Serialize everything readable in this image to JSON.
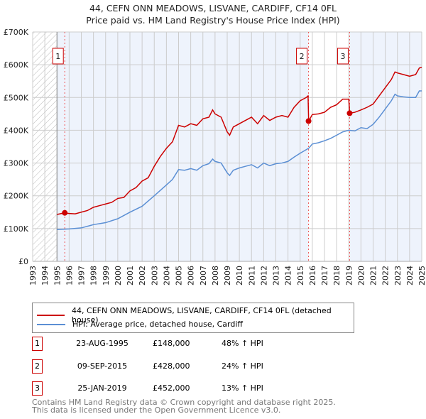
{
  "chart_data": {
    "type": "line",
    "title": "44, CEFN ONN MEADOWS, LISVANE, CARDIFF, CF14 0FL",
    "subtitle": "Price paid vs. HM Land Registry's House Price Index (HPI)",
    "xlim": [
      1993,
      2025
    ],
    "ylim": [
      0,
      700000
    ],
    "y_ticks": [
      {
        "v": 0,
        "label": "£0"
      },
      {
        "v": 100000,
        "label": "£100K"
      },
      {
        "v": 200000,
        "label": "£200K"
      },
      {
        "v": 300000,
        "label": "£300K"
      },
      {
        "v": 400000,
        "label": "£400K"
      },
      {
        "v": 500000,
        "label": "£500K"
      },
      {
        "v": 600000,
        "label": "£600K"
      },
      {
        "v": 700000,
        "label": "£700K"
      }
    ],
    "x_ticks": [
      "1993",
      "1994",
      "1995",
      "1996",
      "1997",
      "1998",
      "1999",
      "2000",
      "2001",
      "2002",
      "2003",
      "2004",
      "2005",
      "2006",
      "2007",
      "2008",
      "2009",
      "2010",
      "2011",
      "2012",
      "2013",
      "2014",
      "2015",
      "2016",
      "2017",
      "2018",
      "2019",
      "2020",
      "2021",
      "2022",
      "2023",
      "2024",
      "2025"
    ],
    "grid": true,
    "series": [
      {
        "name": "44, CEFN ONN MEADOWS, LISVANE, CARDIFF, CF14 0FL (detached house)",
        "color": "#cc0000",
        "x": [
          1995,
          1995.6,
          1996,
          1996.5,
          1997,
          1997.5,
          1998,
          1998.5,
          1999,
          1999.5,
          2000,
          2000.5,
          2001,
          2001.5,
          2002,
          2002.5,
          2003,
          2003.5,
          2004,
          2004.5,
          2004.8,
          2005,
          2005.5,
          2006,
          2006.5,
          2007,
          2007.5,
          2007.8,
          2008,
          2008.5,
          2009,
          2009.2,
          2009.5,
          2010,
          2010.5,
          2011,
          2011.5,
          2012,
          2012.5,
          2013,
          2013.5,
          2014,
          2014.5,
          2015,
          2015.5,
          2015.65,
          2015.7,
          2016,
          2016.5,
          2017,
          2017.5,
          2018,
          2018.5,
          2019,
          2019.07,
          2019.5,
          2020,
          2020.5,
          2021,
          2021.5,
          2022,
          2022.5,
          2022.8,
          2023,
          2023.5,
          2024,
          2024.5,
          2024.8,
          2025
        ],
        "y": [
          143000,
          148000,
          146000,
          145000,
          150000,
          155000,
          165000,
          170000,
          175000,
          180000,
          192000,
          195000,
          215000,
          225000,
          245000,
          255000,
          290000,
          320000,
          345000,
          365000,
          395000,
          415000,
          410000,
          420000,
          415000,
          435000,
          440000,
          462000,
          450000,
          440000,
          395000,
          385000,
          410000,
          420000,
          430000,
          440000,
          420000,
          445000,
          430000,
          440000,
          445000,
          440000,
          470000,
          490000,
          500000,
          505000,
          428000,
          448000,
          450000,
          455000,
          470000,
          478000,
          495000,
          495000,
          452000,
          455000,
          462000,
          470000,
          480000,
          505000,
          530000,
          555000,
          578000,
          575000,
          570000,
          565000,
          570000,
          590000,
          592000
        ]
      },
      {
        "name": "HPI: Average price, detached house, Cardiff",
        "color": "#5b8fd4",
        "x": [
          1995,
          1996,
          1997,
          1998,
          1999,
          2000,
          2001,
          2002,
          2003,
          2004,
          2004.5,
          2005,
          2005.5,
          2006,
          2006.5,
          2007,
          2007.5,
          2007.8,
          2008,
          2008.5,
          2009,
          2009.2,
          2009.5,
          2010,
          2010.5,
          2011,
          2011.5,
          2012,
          2012.5,
          2013,
          2013.5,
          2014,
          2014.5,
          2015,
          2015.7,
          2016,
          2016.5,
          2017,
          2017.5,
          2018,
          2018.5,
          2019,
          2019.5,
          2020,
          2020.5,
          2021,
          2021.5,
          2022,
          2022.5,
          2022.8,
          2023,
          2023.5,
          2024,
          2024.5,
          2024.8,
          2025
        ],
        "y": [
          97000,
          99000,
          102000,
          112000,
          118000,
          130000,
          150000,
          168000,
          200000,
          233000,
          250000,
          280000,
          278000,
          283000,
          278000,
          292000,
          298000,
          312000,
          305000,
          300000,
          270000,
          262000,
          278000,
          285000,
          290000,
          295000,
          285000,
          300000,
          292000,
          298000,
          300000,
          305000,
          318000,
          330000,
          345000,
          358000,
          362000,
          368000,
          375000,
          385000,
          395000,
          400000,
          398000,
          408000,
          405000,
          418000,
          440000,
          465000,
          490000,
          510000,
          505000,
          502000,
          500000,
          500000,
          520000,
          520000
        ]
      }
    ],
    "sales": [
      {
        "label": "1",
        "x": 1995.64,
        "price": 148000,
        "date": "23-AUG-1995",
        "price_label": "£148,000",
        "hpi": "48% ↑ HPI"
      },
      {
        "label": "2",
        "x": 2015.69,
        "price": 428000,
        "date": "09-SEP-2015",
        "price_label": "£428,000",
        "hpi": "24% ↑ HPI"
      },
      {
        "label": "3",
        "x": 2019.07,
        "price": 452000,
        "date": "25-JAN-2019",
        "price_label": "£452,000",
        "hpi": "13% ↑ HPI"
      }
    ]
  },
  "footer": {
    "line1": "Contains HM Land Registry data © Crown copyright and database right 2025.",
    "line2": "This data is licensed under the Open Government Licence v3.0."
  }
}
